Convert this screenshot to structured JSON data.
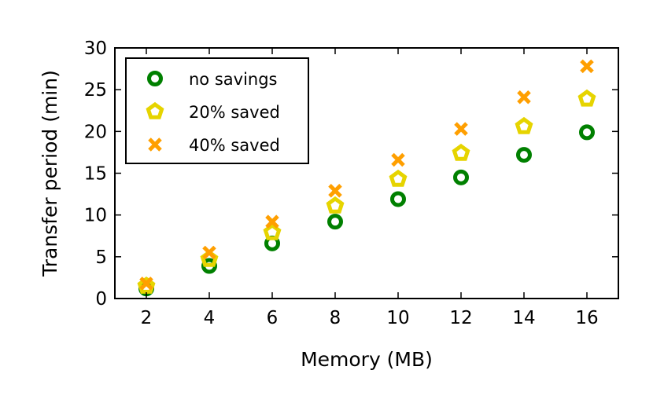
{
  "chart_data": {
    "type": "scatter",
    "title": "",
    "xlabel": "Memory (MB)",
    "ylabel": "Transfer period (min)",
    "xlim": [
      1,
      17
    ],
    "ylim": [
      0,
      30
    ],
    "xticks": [
      2,
      4,
      6,
      8,
      10,
      12,
      14,
      16
    ],
    "yticks": [
      0,
      5,
      10,
      15,
      20,
      25,
      30
    ],
    "grid": false,
    "legend_position": "top-left",
    "x": [
      2,
      4,
      6,
      8,
      10,
      12,
      14,
      16
    ],
    "series": [
      {
        "name": "no savings",
        "marker": "circle",
        "color": "#008000",
        "values": [
          1.2,
          3.9,
          6.6,
          9.2,
          11.9,
          14.5,
          17.2,
          19.9
        ]
      },
      {
        "name": "20% saved",
        "marker": "pentagon",
        "color": "#e6d400",
        "values": [
          1.5,
          4.7,
          7.9,
          11.1,
          14.3,
          17.4,
          20.6,
          23.9
        ]
      },
      {
        "name": "40% saved",
        "marker": "x",
        "color": "#ff9f00",
        "values": [
          1.8,
          5.5,
          9.2,
          12.9,
          16.6,
          20.3,
          24.1,
          27.8
        ]
      }
    ]
  }
}
